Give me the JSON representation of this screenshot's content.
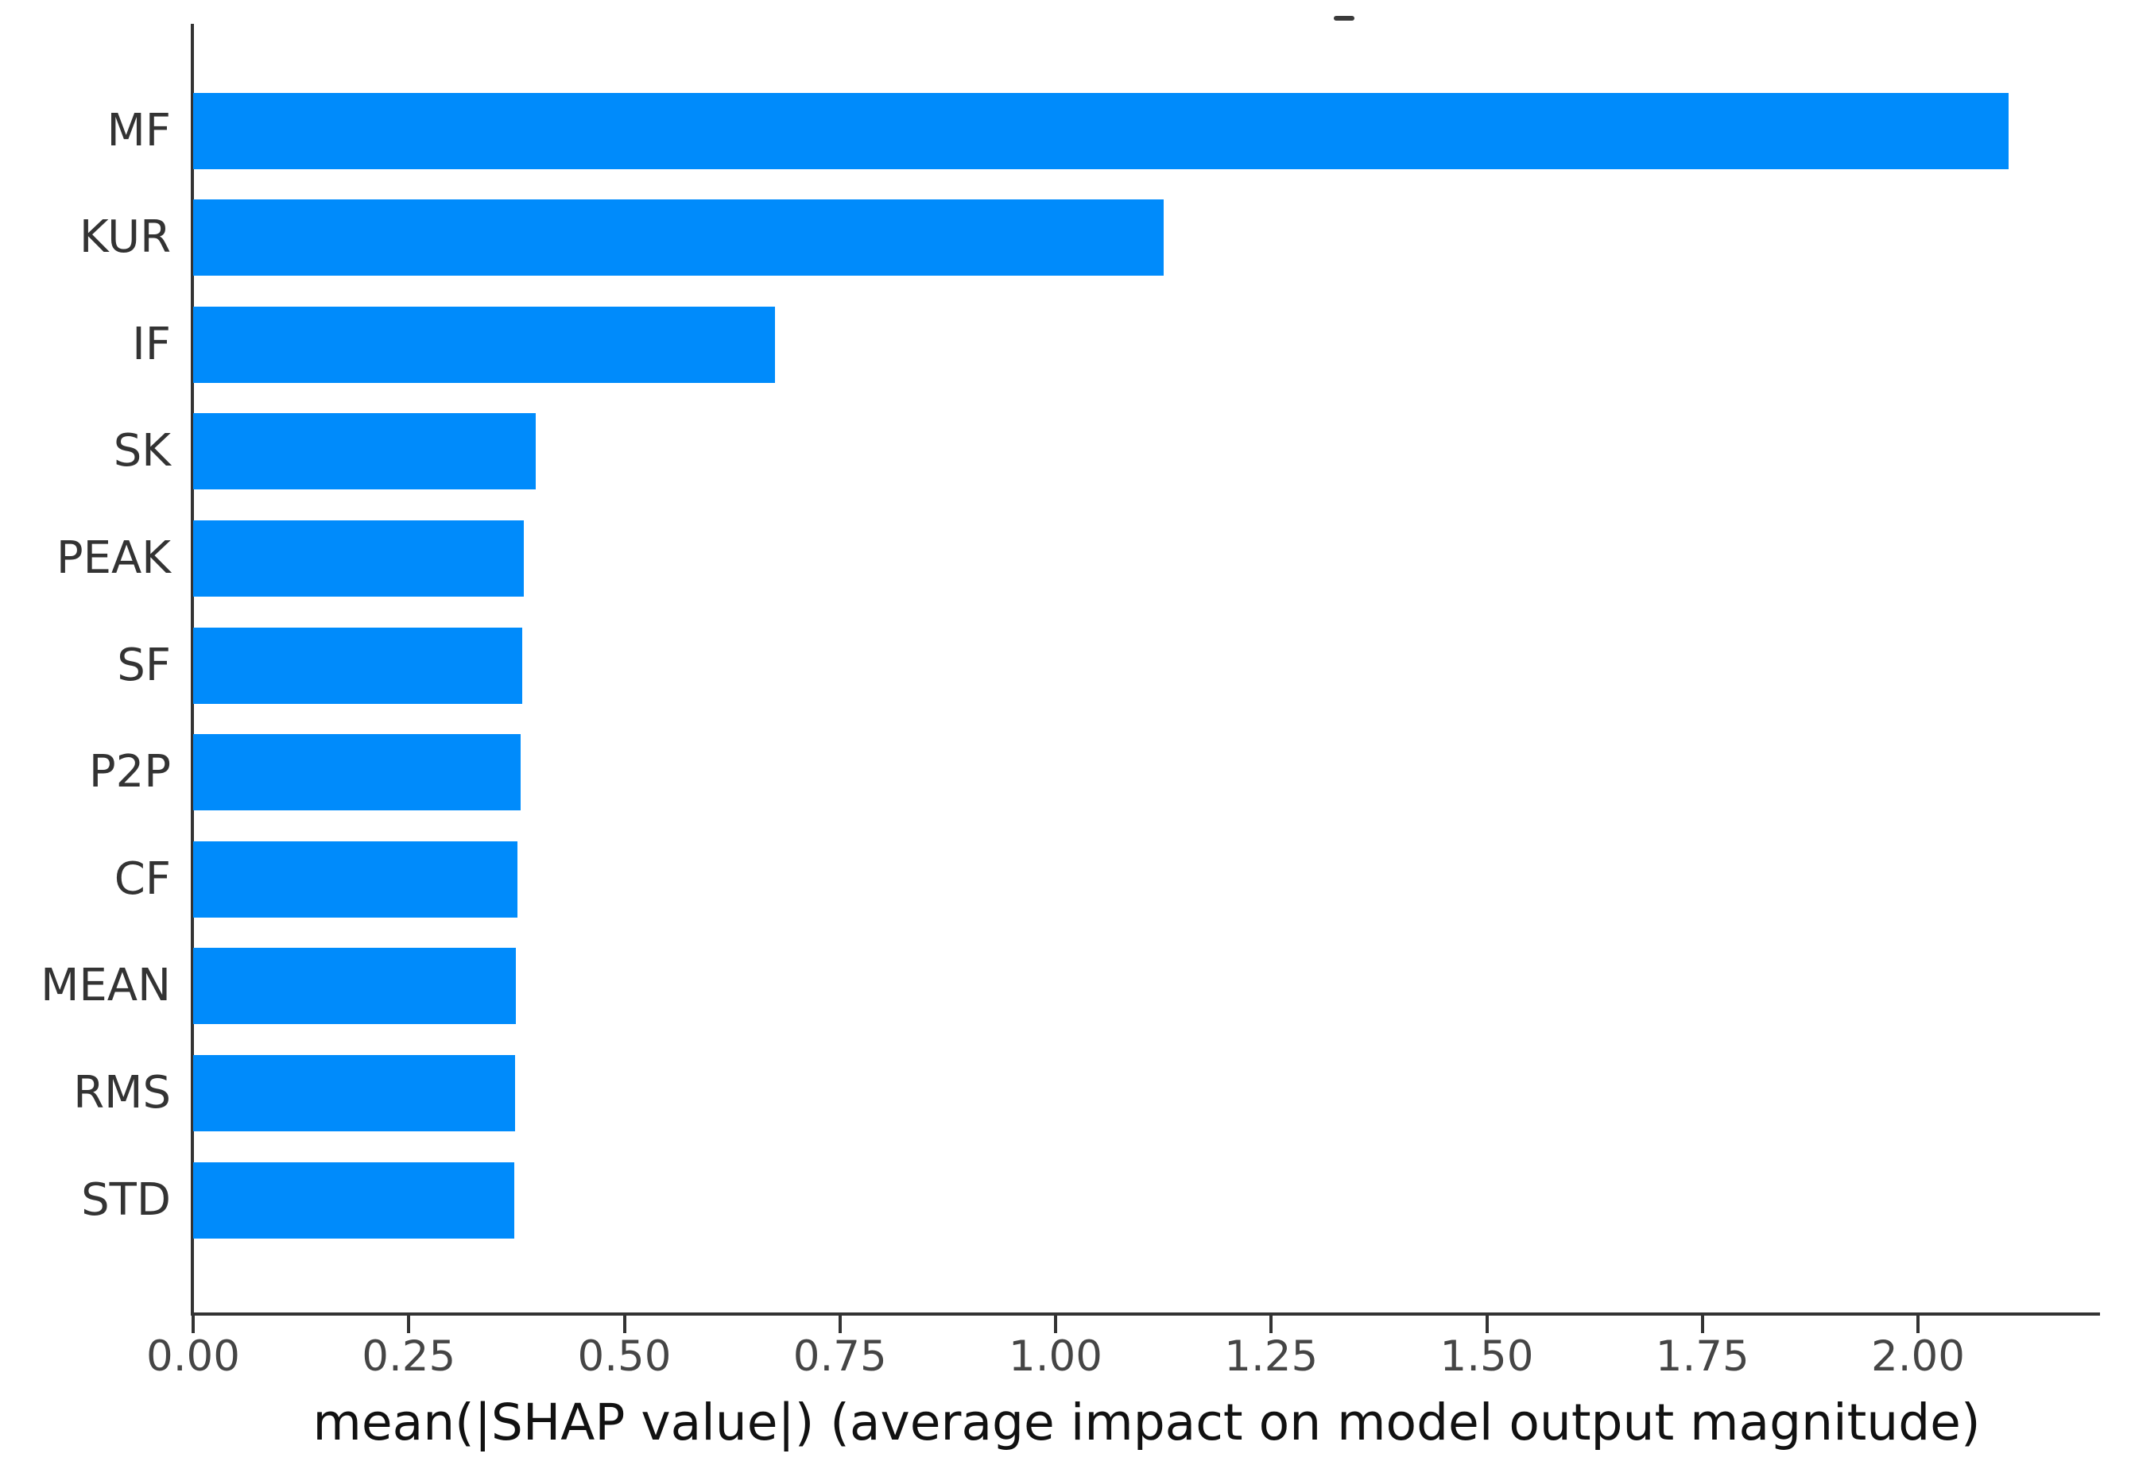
{
  "chart_data": {
    "type": "bar",
    "orientation": "horizontal",
    "title": "",
    "xlabel": "mean(|SHAP value|) (average impact on model output magnitude)",
    "ylabel": "",
    "categories": [
      "MF",
      "KUR",
      "IF",
      "SK",
      "PEAK",
      "SF",
      "P2P",
      "CF",
      "MEAN",
      "RMS",
      "STD"
    ],
    "values": [
      2.105,
      1.125,
      0.675,
      0.397,
      0.383,
      0.382,
      0.38,
      0.376,
      0.374,
      0.373,
      0.372
    ],
    "xtick_labels": [
      "0.00",
      "0.25",
      "0.50",
      "0.75",
      "1.00",
      "1.25",
      "1.50",
      "1.75",
      "2.00"
    ],
    "xtick_values": [
      0.0,
      0.25,
      0.5,
      0.75,
      1.0,
      1.25,
      1.5,
      1.75,
      2.0
    ],
    "xlim": [
      0,
      2.21
    ],
    "grid": false,
    "legend": null,
    "bar_color": "#008bfb",
    "axis_color": "#333333",
    "tick_label_color": "#454545",
    "category_label_color": "#333333",
    "xlabel_color": "#111111",
    "top_crop_mark_color": "#3a3a3a"
  }
}
